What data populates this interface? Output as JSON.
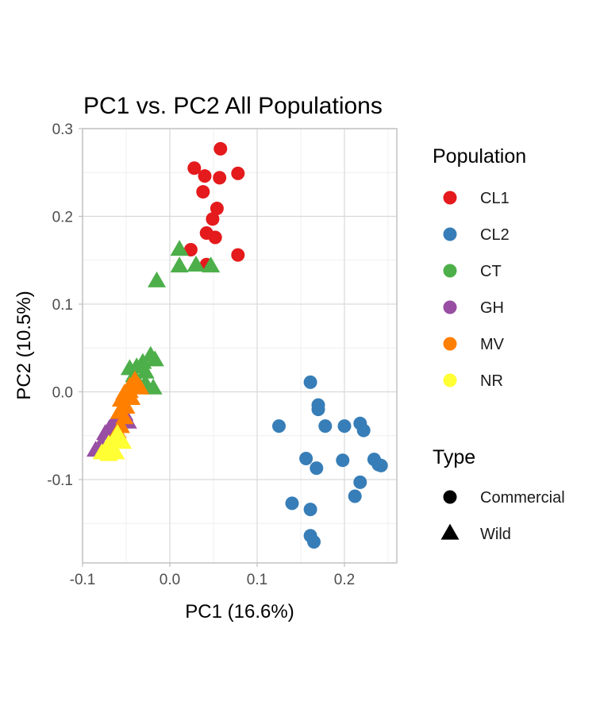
{
  "chart_data": {
    "type": "scatter",
    "title": "PC1 vs. PC2 All Populations",
    "xlabel": "PC1 (16.6%)",
    "ylabel": "PC2 (10.5%)",
    "xlim": [
      -0.1,
      0.26
    ],
    "ylim": [
      -0.195,
      0.3
    ],
    "x_ticks": [
      -0.1,
      0.0,
      0.1,
      0.2
    ],
    "x_tick_labels": [
      "-0.1",
      "0.0",
      "0.1",
      "0.2"
    ],
    "y_ticks": [
      -0.1,
      0.0,
      0.1,
      0.2,
      0.3
    ],
    "y_tick_labels": [
      "-0.1",
      "0.0",
      "0.1",
      "0.2",
      "0.3"
    ],
    "grid": true,
    "legend_placement": "right",
    "legends": {
      "population_title": "Population",
      "type_title": "Type"
    },
    "types": [
      {
        "name": "Commercial",
        "shape": "circle"
      },
      {
        "name": "Wild",
        "shape": "triangle"
      }
    ],
    "series": [
      {
        "name": "CL1",
        "color": "#e41a1c",
        "type": "Commercial",
        "points": [
          [
            0.058,
            0.277
          ],
          [
            0.028,
            0.255
          ],
          [
            0.078,
            0.249
          ],
          [
            0.04,
            0.246
          ],
          [
            0.057,
            0.244
          ],
          [
            0.038,
            0.228
          ],
          [
            0.054,
            0.209
          ],
          [
            0.049,
            0.197
          ],
          [
            0.042,
            0.181
          ],
          [
            0.052,
            0.176
          ],
          [
            0.024,
            0.162
          ],
          [
            0.078,
            0.156
          ],
          [
            0.042,
            0.145
          ]
        ]
      },
      {
        "name": "CL2",
        "color": "#377eb8",
        "type": "Commercial",
        "points": [
          [
            0.161,
            0.011
          ],
          [
            0.17,
            -0.015
          ],
          [
            0.17,
            -0.02
          ],
          [
            0.125,
            -0.039
          ],
          [
            0.178,
            -0.039
          ],
          [
            0.2,
            -0.039
          ],
          [
            0.218,
            -0.036
          ],
          [
            0.222,
            -0.044
          ],
          [
            0.156,
            -0.076
          ],
          [
            0.198,
            -0.078
          ],
          [
            0.234,
            -0.077
          ],
          [
            0.239,
            -0.083
          ],
          [
            0.242,
            -0.084
          ],
          [
            0.168,
            -0.087
          ],
          [
            0.218,
            -0.103
          ],
          [
            0.212,
            -0.119
          ],
          [
            0.14,
            -0.127
          ],
          [
            0.161,
            -0.134
          ],
          [
            0.161,
            -0.164
          ],
          [
            0.165,
            -0.171
          ]
        ]
      },
      {
        "name": "CT",
        "color": "#4daf4a",
        "type": "Wild",
        "points": [
          [
            0.011,
            0.162
          ],
          [
            0.011,
            0.143
          ],
          [
            0.03,
            0.144
          ],
          [
            0.047,
            0.143
          ],
          [
            -0.015,
            0.126
          ],
          [
            -0.022,
            0.041
          ],
          [
            -0.017,
            0.036
          ],
          [
            -0.031,
            0.033
          ],
          [
            -0.038,
            0.028
          ],
          [
            -0.046,
            0.026
          ],
          [
            -0.028,
            0.022
          ],
          [
            -0.041,
            0.018
          ],
          [
            -0.019,
            0.004
          ],
          [
            -0.038,
            0.005
          ],
          [
            -0.028,
            0.009
          ]
        ]
      },
      {
        "name": "GH",
        "color": "#984ea3",
        "type": "Wild",
        "points": [
          [
            -0.085,
            -0.067
          ],
          [
            -0.078,
            -0.06
          ],
          [
            -0.074,
            -0.048
          ],
          [
            -0.069,
            -0.042
          ],
          [
            -0.065,
            -0.037
          ],
          [
            -0.058,
            -0.03
          ],
          [
            -0.052,
            -0.026
          ],
          [
            -0.048,
            -0.035
          ],
          [
            -0.082,
            -0.066
          ],
          [
            -0.061,
            -0.045
          ]
        ]
      },
      {
        "name": "MV",
        "color": "#ff7f00",
        "type": "Wild",
        "points": [
          [
            -0.04,
            0.013
          ],
          [
            -0.034,
            0.004
          ],
          [
            -0.046,
            0.006
          ],
          [
            -0.052,
            -0.002
          ],
          [
            -0.044,
            -0.008
          ],
          [
            -0.056,
            -0.01
          ],
          [
            -0.05,
            -0.018
          ],
          [
            -0.058,
            -0.024
          ],
          [
            -0.052,
            -0.03
          ],
          [
            -0.056,
            -0.04
          ],
          [
            -0.06,
            -0.046
          ],
          [
            -0.046,
            0.0
          ]
        ]
      },
      {
        "name": "NR",
        "color": "#ffff33",
        "type": "Wild",
        "points": [
          [
            -0.06,
            -0.048
          ],
          [
            -0.054,
            -0.058
          ],
          [
            -0.064,
            -0.055
          ],
          [
            -0.07,
            -0.06
          ],
          [
            -0.066,
            -0.068
          ],
          [
            -0.074,
            -0.067
          ],
          [
            -0.078,
            -0.07
          ],
          [
            -0.07,
            -0.072
          ],
          [
            -0.062,
            -0.07
          ]
        ]
      }
    ]
  }
}
